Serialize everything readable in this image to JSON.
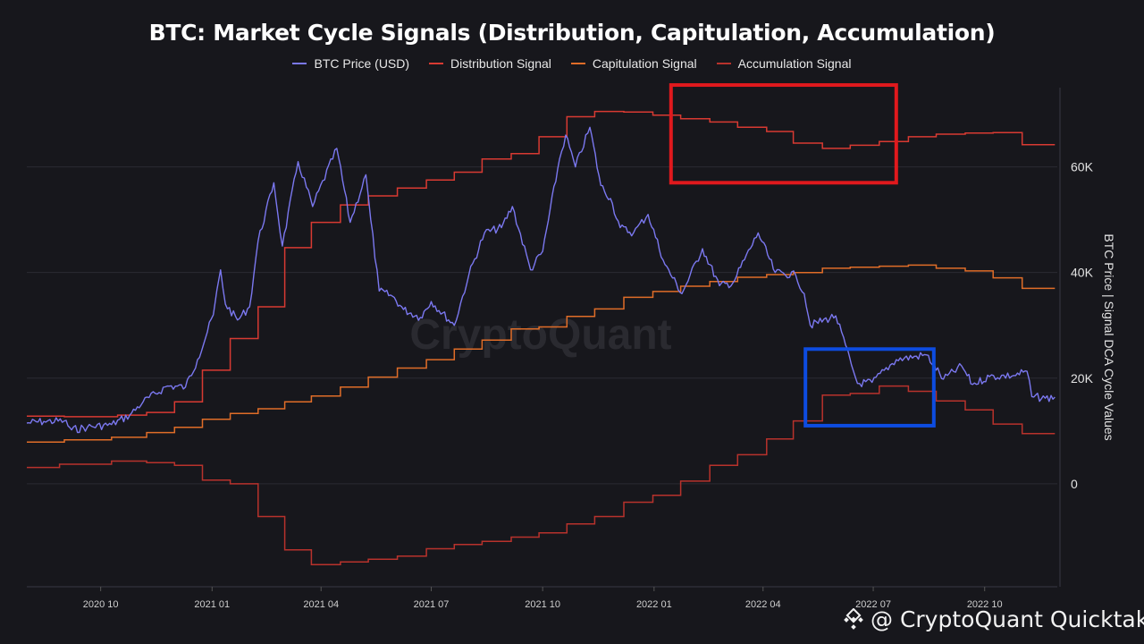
{
  "chart_data": {
    "type": "line",
    "title": "BTC: Market Cycle Signals (Distribution, Capitulation, Accumulation)",
    "ylabel_right": "BTC Price | Signal DCA Cycle Values",
    "y_ticks": [
      "60K",
      "40K",
      "20K",
      "0"
    ],
    "y_tick_values": [
      60000,
      40000,
      20000,
      0
    ],
    "ylim": [
      -19500,
      75000
    ],
    "x_ticks": [
      "2020 10",
      "2021 01",
      "2021 04",
      "2021 07",
      "2021 10",
      "2022 01",
      "2022 04",
      "2022 07",
      "2022 10"
    ],
    "x_tick_dates": [
      "2020-10-01",
      "2021-01-01",
      "2021-04-01",
      "2021-07-01",
      "2021-10-01",
      "2022-01-01",
      "2022-04-01",
      "2022-07-01",
      "2022-10-01"
    ],
    "x_range": [
      "2020-08-01",
      "2022-11-30"
    ],
    "grid": true,
    "legend_position": "top-center",
    "series": [
      {
        "name": "BTC Price (USD)",
        "color": "#7b78f0",
        "points": [
          [
            "2020-08-01",
            11500
          ],
          [
            "2020-08-15",
            11800
          ],
          [
            "2020-09-01",
            11900
          ],
          [
            "2020-09-07",
            10200
          ],
          [
            "2020-09-20",
            10700
          ],
          [
            "2020-10-10",
            11200
          ],
          [
            "2020-10-25",
            13000
          ],
          [
            "2020-11-05",
            15500
          ],
          [
            "2020-11-25",
            18500
          ],
          [
            "2020-12-10",
            18300
          ],
          [
            "2020-12-20",
            23500
          ],
          [
            "2021-01-02",
            32000
          ],
          [
            "2021-01-08",
            40500
          ],
          [
            "2021-01-12",
            34000
          ],
          [
            "2021-01-22",
            31000
          ],
          [
            "2021-02-01",
            33500
          ],
          [
            "2021-02-08",
            46000
          ],
          [
            "2021-02-21",
            57000
          ],
          [
            "2021-02-28",
            45000
          ],
          [
            "2021-03-13",
            61000
          ],
          [
            "2021-03-25",
            52500
          ],
          [
            "2021-04-14",
            63500
          ],
          [
            "2021-04-25",
            49500
          ],
          [
            "2021-05-08",
            58500
          ],
          [
            "2021-05-12",
            50000
          ],
          [
            "2021-05-19",
            36500
          ],
          [
            "2021-05-30",
            35500
          ],
          [
            "2021-06-08",
            33000
          ],
          [
            "2021-06-22",
            31500
          ],
          [
            "2021-07-01",
            34500
          ],
          [
            "2021-07-20",
            30000
          ],
          [
            "2021-08-01",
            39500
          ],
          [
            "2021-08-14",
            47500
          ],
          [
            "2021-08-28",
            48500
          ],
          [
            "2021-09-06",
            52500
          ],
          [
            "2021-09-21",
            40500
          ],
          [
            "2021-10-01",
            44000
          ],
          [
            "2021-10-15",
            61500
          ],
          [
            "2021-10-20",
            66000
          ],
          [
            "2021-10-28",
            60000
          ],
          [
            "2021-11-09",
            67500
          ],
          [
            "2021-11-18",
            56500
          ],
          [
            "2021-11-26",
            54000
          ],
          [
            "2021-12-04",
            48500
          ],
          [
            "2021-12-15",
            47500
          ],
          [
            "2021-12-27",
            51000
          ],
          [
            "2022-01-10",
            41500
          ],
          [
            "2022-01-24",
            36000
          ],
          [
            "2022-02-10",
            44500
          ],
          [
            "2022-02-24",
            37500
          ],
          [
            "2022-03-07",
            38000
          ],
          [
            "2022-03-28",
            47500
          ],
          [
            "2022-04-11",
            40000
          ],
          [
            "2022-04-28",
            39500
          ],
          [
            "2022-05-05",
            36000
          ],
          [
            "2022-05-10",
            30000
          ],
          [
            "2022-05-31",
            31800
          ],
          [
            "2022-06-13",
            22500
          ],
          [
            "2022-06-18",
            19000
          ],
          [
            "2022-06-30",
            19200
          ],
          [
            "2022-07-20",
            23500
          ],
          [
            "2022-08-14",
            24400
          ],
          [
            "2022-08-28",
            19800
          ],
          [
            "2022-09-12",
            22300
          ],
          [
            "2022-09-21",
            18800
          ],
          [
            "2022-10-05",
            20300
          ],
          [
            "2022-10-25",
            20500
          ],
          [
            "2022-11-05",
            21300
          ],
          [
            "2022-11-09",
            16500
          ],
          [
            "2022-11-20",
            16200
          ],
          [
            "2022-11-28",
            16400
          ]
        ]
      },
      {
        "name": "Distribution Signal",
        "color": "#d83a32",
        "steps": [
          [
            "2020-08-01",
            12800
          ],
          [
            "2020-09-01",
            12700
          ],
          [
            "2020-10-15",
            13000
          ],
          [
            "2020-11-08",
            13500
          ],
          [
            "2020-12-01",
            15500
          ],
          [
            "2020-12-24",
            21500
          ],
          [
            "2021-01-16",
            27500
          ],
          [
            "2021-02-08",
            33500
          ],
          [
            "2021-03-02",
            44700
          ],
          [
            "2021-03-24",
            49500
          ],
          [
            "2021-04-17",
            52800
          ],
          [
            "2021-05-10",
            54500
          ],
          [
            "2021-06-03",
            56000
          ],
          [
            "2021-06-27",
            57500
          ],
          [
            "2021-07-20",
            59000
          ],
          [
            "2021-08-12",
            61500
          ],
          [
            "2021-09-05",
            62500
          ],
          [
            "2021-09-28",
            65700
          ],
          [
            "2021-10-21",
            69500
          ],
          [
            "2021-11-13",
            70500
          ],
          [
            "2021-12-07",
            70400
          ],
          [
            "2021-12-31",
            69800
          ],
          [
            "2022-01-23",
            69100
          ],
          [
            "2022-02-16",
            68500
          ],
          [
            "2022-03-11",
            67500
          ],
          [
            "2022-04-04",
            66700
          ],
          [
            "2022-04-26",
            64500
          ],
          [
            "2022-05-20",
            63500
          ],
          [
            "2022-06-12",
            64100
          ],
          [
            "2022-07-06",
            64800
          ],
          [
            "2022-07-30",
            65700
          ],
          [
            "2022-08-22",
            66200
          ],
          [
            "2022-09-15",
            66400
          ],
          [
            "2022-10-08",
            66500
          ],
          [
            "2022-11-01",
            64200
          ],
          [
            "2022-11-28",
            64200
          ]
        ]
      },
      {
        "name": "Capitulation Signal",
        "color": "#e06d28",
        "steps": [
          [
            "2020-08-01",
            7900
          ],
          [
            "2020-09-01",
            8300
          ],
          [
            "2020-10-10",
            8800
          ],
          [
            "2020-11-08",
            9700
          ],
          [
            "2020-12-01",
            10700
          ],
          [
            "2020-12-24",
            12200
          ],
          [
            "2021-01-16",
            13300
          ],
          [
            "2021-02-08",
            14200
          ],
          [
            "2021-03-02",
            15500
          ],
          [
            "2021-03-24",
            16600
          ],
          [
            "2021-04-17",
            18300
          ],
          [
            "2021-05-10",
            20200
          ],
          [
            "2021-06-03",
            21900
          ],
          [
            "2021-06-27",
            23500
          ],
          [
            "2021-07-20",
            25500
          ],
          [
            "2021-08-12",
            27200
          ],
          [
            "2021-09-05",
            29300
          ],
          [
            "2021-09-28",
            29700
          ],
          [
            "2021-10-21",
            31700
          ],
          [
            "2021-11-13",
            33100
          ],
          [
            "2021-12-07",
            35300
          ],
          [
            "2021-12-31",
            36400
          ],
          [
            "2022-01-23",
            37400
          ],
          [
            "2022-02-16",
            38300
          ],
          [
            "2022-03-11",
            39100
          ],
          [
            "2022-04-04",
            39600
          ],
          [
            "2022-04-26",
            40000
          ],
          [
            "2022-05-20",
            40800
          ],
          [
            "2022-06-12",
            41000
          ],
          [
            "2022-07-06",
            41200
          ],
          [
            "2022-07-30",
            41400
          ],
          [
            "2022-08-22",
            40800
          ],
          [
            "2022-09-15",
            40300
          ],
          [
            "2022-10-08",
            39000
          ],
          [
            "2022-11-01",
            37000
          ],
          [
            "2022-11-28",
            37000
          ]
        ]
      },
      {
        "name": "Accumulation Signal",
        "color": "#b8322c",
        "steps": [
          [
            "2020-08-01",
            3100
          ],
          [
            "2020-08-28",
            3700
          ],
          [
            "2020-10-10",
            4300
          ],
          [
            "2020-11-08",
            4000
          ],
          [
            "2020-12-01",
            3500
          ],
          [
            "2020-12-24",
            700
          ],
          [
            "2021-01-16",
            0
          ],
          [
            "2021-02-08",
            -6200
          ],
          [
            "2021-03-02",
            -12500
          ],
          [
            "2021-03-24",
            -15300
          ],
          [
            "2021-04-17",
            -14800
          ],
          [
            "2021-05-10",
            -14300
          ],
          [
            "2021-06-03",
            -13700
          ],
          [
            "2021-06-27",
            -12300
          ],
          [
            "2021-07-20",
            -11500
          ],
          [
            "2021-08-12",
            -10900
          ],
          [
            "2021-09-05",
            -10100
          ],
          [
            "2021-09-28",
            -9300
          ],
          [
            "2021-10-21",
            -7600
          ],
          [
            "2021-11-13",
            -6200
          ],
          [
            "2021-12-07",
            -3500
          ],
          [
            "2021-12-31",
            -2200
          ],
          [
            "2022-01-23",
            500
          ],
          [
            "2022-02-16",
            3500
          ],
          [
            "2022-03-11",
            5500
          ],
          [
            "2022-04-04",
            8500
          ],
          [
            "2022-04-26",
            11900
          ],
          [
            "2022-05-20",
            16800
          ],
          [
            "2022-06-12",
            17100
          ],
          [
            "2022-07-06",
            18500
          ],
          [
            "2022-07-30",
            17500
          ],
          [
            "2022-08-22",
            15700
          ],
          [
            "2022-09-15",
            14000
          ],
          [
            "2022-10-08",
            11300
          ],
          [
            "2022-11-01",
            9500
          ],
          [
            "2022-11-28",
            9500
          ]
        ]
      }
    ],
    "annotations": [
      {
        "shape": "rect",
        "color": "#e0191d",
        "x": [
          "2022-01-15",
          "2022-07-20"
        ],
        "y": [
          57000,
          75500
        ]
      },
      {
        "shape": "rect",
        "color": "#0d4ce0",
        "x": [
          "2022-05-06",
          "2022-08-20"
        ],
        "y": [
          11000,
          25500
        ]
      }
    ],
    "watermark": "CryptoQuant"
  },
  "footer": {
    "logo_icon": "binance-square-icon",
    "text": "@ CryptoQuant Quicktak..."
  }
}
